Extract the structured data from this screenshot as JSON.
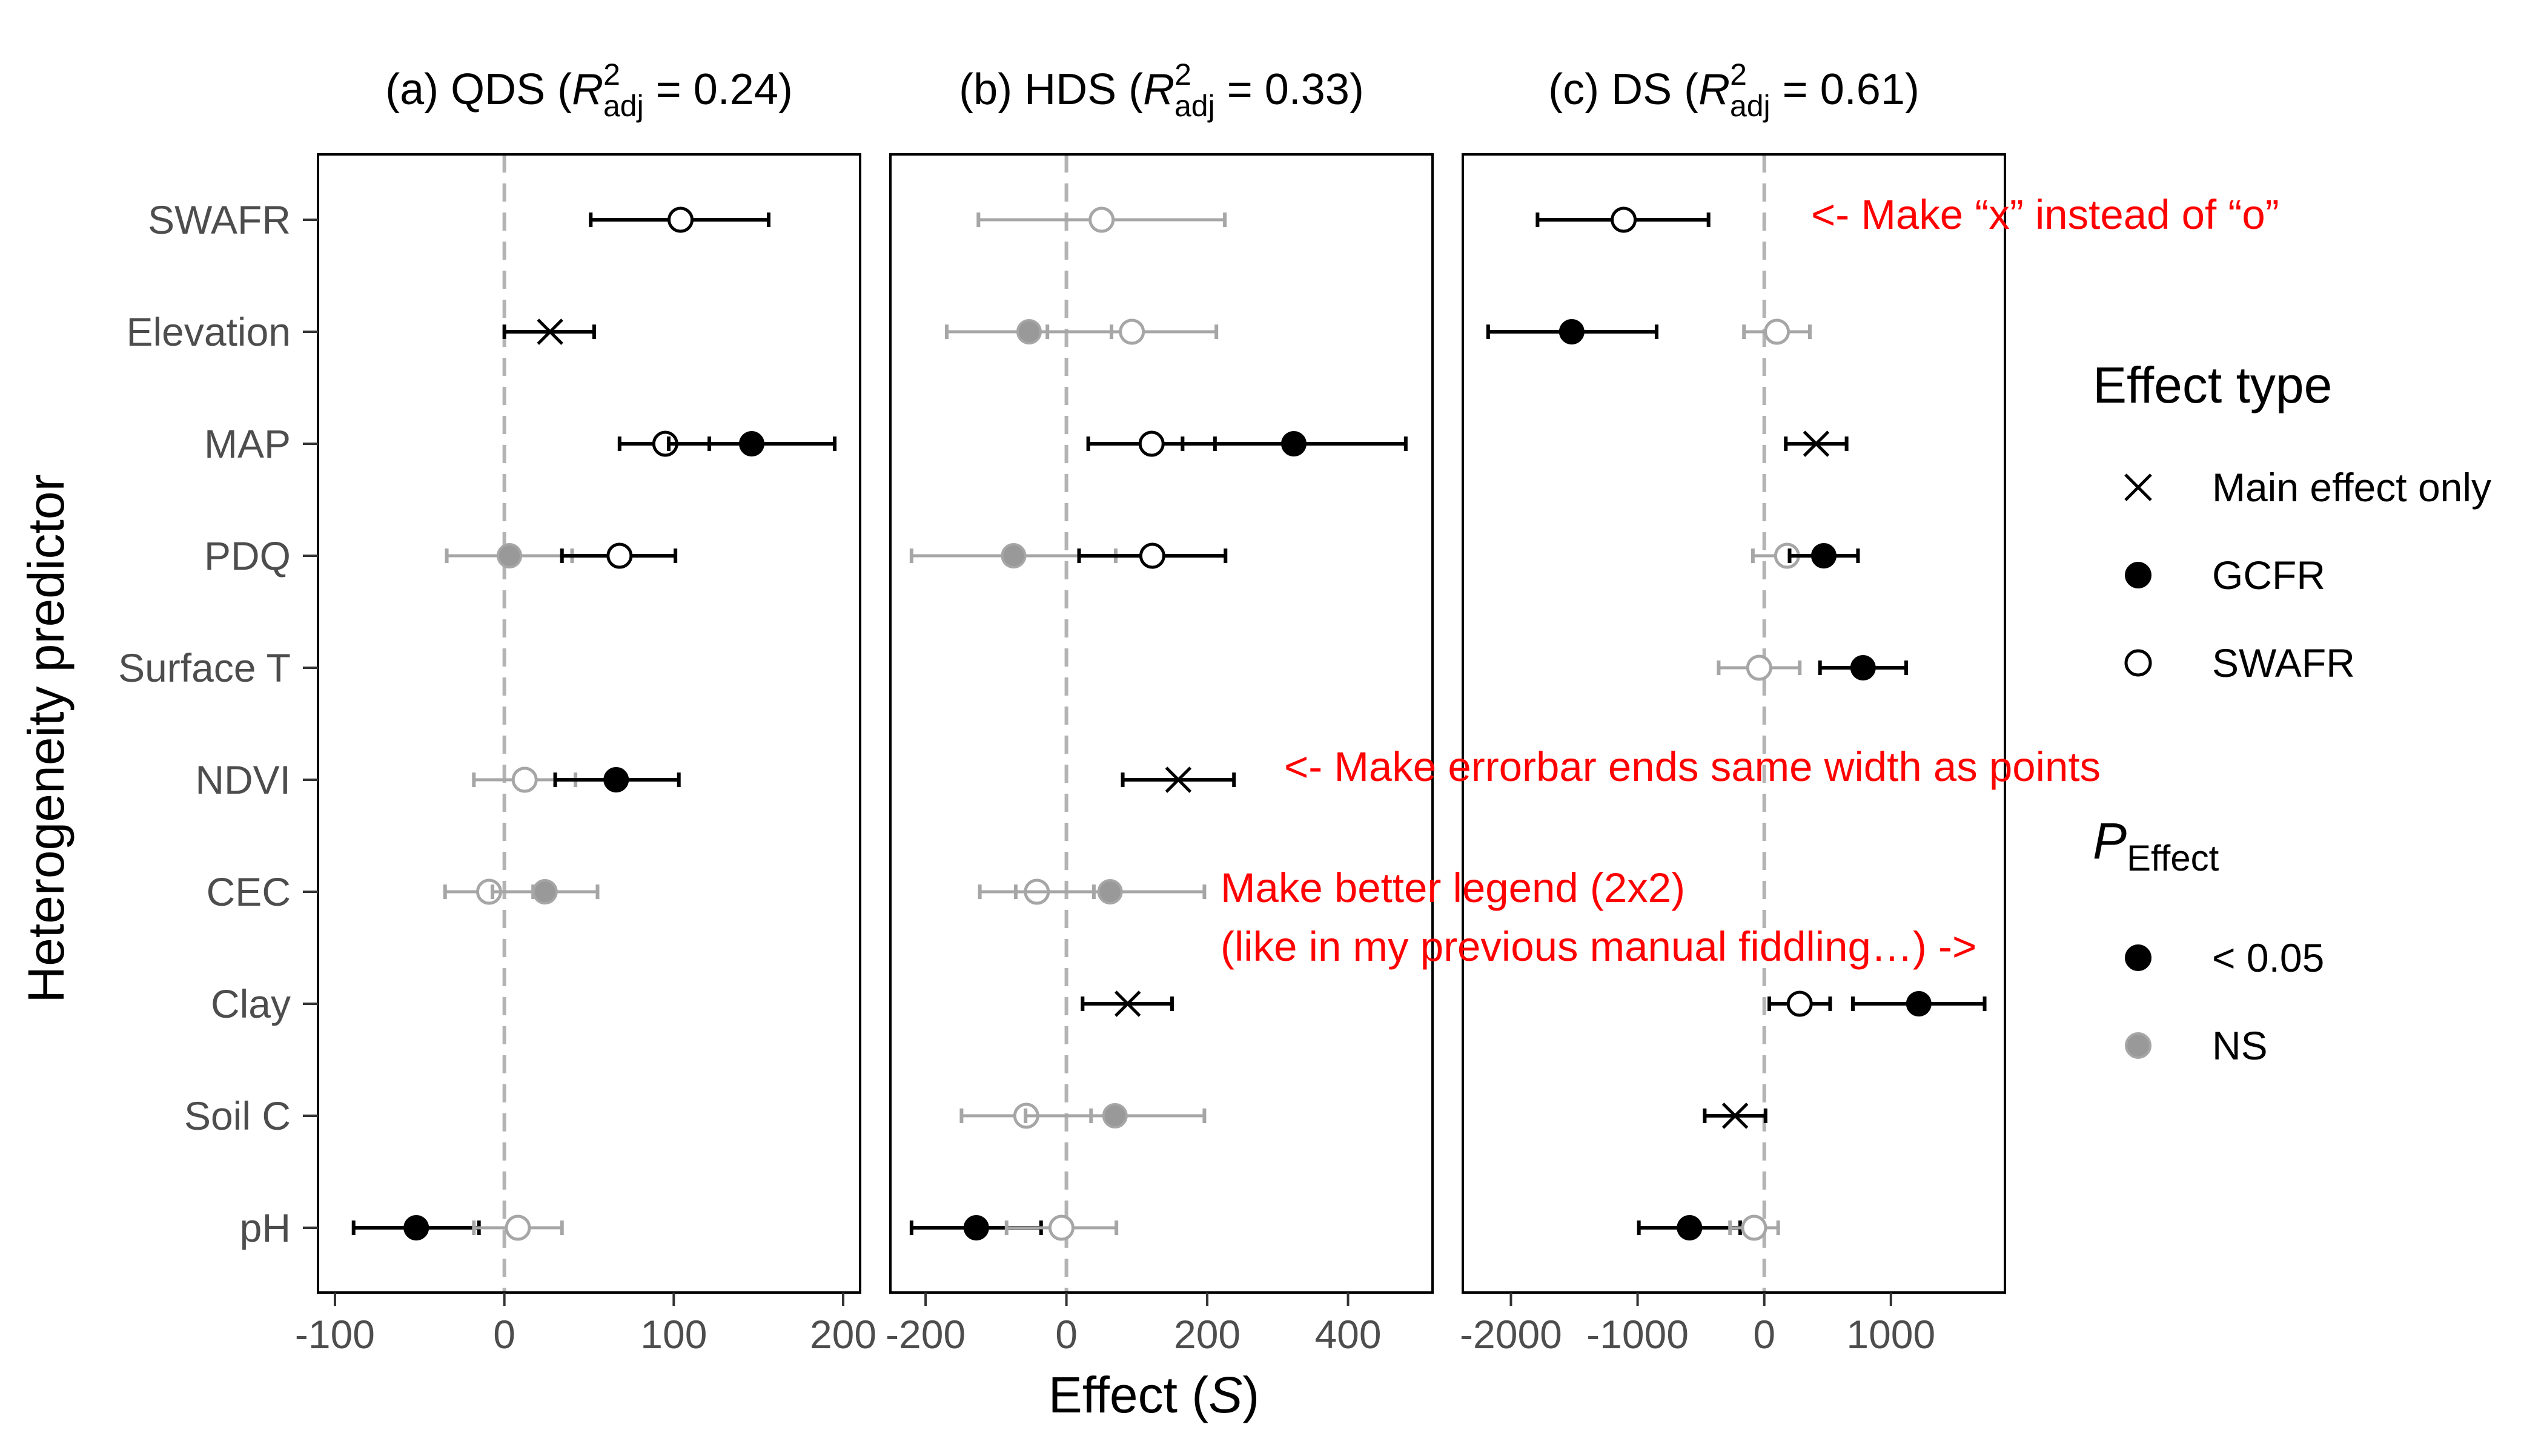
{
  "colors": {
    "sig": "#000000",
    "ns": "#a6a6a6",
    "ns_fill": "#999999",
    "zero_line": "#b3b3b3",
    "annotation": "#ff0000"
  },
  "axis": {
    "ylabel": "Heterogeneity predictor",
    "xlabel": "Effect",
    "xlabel_symbol": "S",
    "predictors": [
      "SWAFR",
      "Elevation",
      "MAP",
      "PDQ",
      "Surface T",
      "NDVI",
      "CEC",
      "Clay",
      "Soil C",
      "pH"
    ]
  },
  "legend": {
    "effect_type_title": "Effect type",
    "effect_type_items": [
      {
        "symbol": "cross",
        "label": "Main effect only"
      },
      {
        "symbol": "filled",
        "label": "GCFR"
      },
      {
        "symbol": "open",
        "label": "SWAFR"
      }
    ],
    "p_title": "P",
    "p_title_sub": "Effect",
    "p_items": [
      {
        "status": "sig",
        "label": "< 0.05"
      },
      {
        "status": "ns",
        "label": "NS"
      }
    ]
  },
  "annotations": [
    "<- Make “x” instead of “o”",
    "<- Make errorbar ends same width as points",
    "Make better legend (2x2)",
    "(like in my previous manual fiddling…) ->"
  ],
  "chart_data": [
    {
      "type": "scatter",
      "panel": "(a)",
      "title_prefix": "(a)  QDS (",
      "title_r2": "R",
      "title_r2_sup": "2",
      "title_r2_sub": "adj",
      "title_value": " = 0.24)",
      "xlim": [
        -110,
        210
      ],
      "xticks": [
        -100,
        0,
        100,
        200
      ],
      "xtick_labels": [
        "-100",
        "0",
        "100",
        "200"
      ],
      "points": [
        {
          "predictor": "SWAFR",
          "type": "SWAFR",
          "sig": true,
          "est": 104,
          "lo": 51,
          "hi": 156
        },
        {
          "predictor": "Elevation",
          "type": "Main",
          "sig": true,
          "est": 27,
          "lo": 0,
          "hi": 53
        },
        {
          "predictor": "MAP",
          "type": "SWAFR",
          "sig": true,
          "est": 95,
          "lo": 68,
          "hi": 121
        },
        {
          "predictor": "MAP",
          "type": "GCFR",
          "sig": true,
          "est": 146,
          "lo": 97,
          "hi": 195
        },
        {
          "predictor": "PDQ",
          "type": "GCFR",
          "sig": false,
          "est": 3,
          "lo": -34,
          "hi": 40
        },
        {
          "predictor": "PDQ",
          "type": "SWAFR",
          "sig": true,
          "est": 68,
          "lo": 34,
          "hi": 101
        },
        {
          "predictor": "NDVI",
          "type": "SWAFR",
          "sig": false,
          "est": 12,
          "lo": -18,
          "hi": 42
        },
        {
          "predictor": "NDVI",
          "type": "GCFR",
          "sig": true,
          "est": 66,
          "lo": 30,
          "hi": 103
        },
        {
          "predictor": "CEC",
          "type": "SWAFR",
          "sig": false,
          "est": -9,
          "lo": -35,
          "hi": 17
        },
        {
          "predictor": "CEC",
          "type": "GCFR",
          "sig": false,
          "est": 24,
          "lo": -7,
          "hi": 55
        },
        {
          "predictor": "pH",
          "type": "GCFR",
          "sig": true,
          "est": -52,
          "lo": -89,
          "hi": -15
        },
        {
          "predictor": "pH",
          "type": "SWAFR",
          "sig": false,
          "est": 8,
          "lo": -18,
          "hi": 34
        }
      ]
    },
    {
      "type": "scatter",
      "panel": "(b)",
      "title_prefix": "(b)  HDS (",
      "title_r2": "R",
      "title_r2_sup": "2",
      "title_r2_sub": "adj",
      "title_value": " = 0.33)",
      "xlim": [
        -250,
        520
      ],
      "xticks": [
        -200,
        0,
        200,
        400
      ],
      "xtick_labels": [
        "-200",
        "0",
        "200",
        "400"
      ],
      "points": [
        {
          "predictor": "SWAFR",
          "type": "SWAFR",
          "sig": false,
          "est": 50,
          "lo": -125,
          "hi": 225
        },
        {
          "predictor": "Elevation",
          "type": "GCFR",
          "sig": false,
          "est": -53,
          "lo": -170,
          "hi": 64
        },
        {
          "predictor": "Elevation",
          "type": "SWAFR",
          "sig": false,
          "est": 93,
          "lo": -27,
          "hi": 213
        },
        {
          "predictor": "MAP",
          "type": "SWAFR",
          "sig": true,
          "est": 121,
          "lo": 31,
          "hi": 211
        },
        {
          "predictor": "MAP",
          "type": "GCFR",
          "sig": true,
          "est": 323,
          "lo": 165,
          "hi": 482
        },
        {
          "predictor": "PDQ",
          "type": "GCFR",
          "sig": false,
          "est": -75,
          "lo": -220,
          "hi": 70
        },
        {
          "predictor": "PDQ",
          "type": "SWAFR",
          "sig": true,
          "est": 122,
          "lo": 18,
          "hi": 226
        },
        {
          "predictor": "NDVI",
          "type": "Main",
          "sig": true,
          "est": 159,
          "lo": 80,
          "hi": 238
        },
        {
          "predictor": "CEC",
          "type": "SWAFR",
          "sig": false,
          "est": -42,
          "lo": -123,
          "hi": 39
        },
        {
          "predictor": "CEC",
          "type": "GCFR",
          "sig": false,
          "est": 62,
          "lo": -72,
          "hi": 196
        },
        {
          "predictor": "Clay",
          "type": "Main",
          "sig": true,
          "est": 87,
          "lo": 23,
          "hi": 150
        },
        {
          "predictor": "Soil C",
          "type": "SWAFR",
          "sig": false,
          "est": -57,
          "lo": -149,
          "hi": 35
        },
        {
          "predictor": "Soil C",
          "type": "GCFR",
          "sig": false,
          "est": 69,
          "lo": -58,
          "hi": 196
        },
        {
          "predictor": "pH",
          "type": "GCFR",
          "sig": true,
          "est": -128,
          "lo": -220,
          "hi": -36
        },
        {
          "predictor": "pH",
          "type": "SWAFR",
          "sig": false,
          "est": -7,
          "lo": -85,
          "hi": 71
        }
      ]
    },
    {
      "type": "scatter",
      "panel": "(c)",
      "title_prefix": "(c)  DS (",
      "title_r2": "R",
      "title_r2_sup": "2",
      "title_r2_sub": "adj",
      "title_value": " = 0.61)",
      "xlim": [
        -2380,
        1900
      ],
      "xticks": [
        -2000,
        -1000,
        0,
        1000
      ],
      "xtick_labels": [
        "-2000",
        "-1000",
        "0",
        "1000"
      ],
      "points": [
        {
          "predictor": "SWAFR",
          "type": "SWAFR",
          "sig": true,
          "est": -1110,
          "lo": -1790,
          "hi": -440
        },
        {
          "predictor": "Elevation",
          "type": "GCFR",
          "sig": true,
          "est": -1520,
          "lo": -2180,
          "hi": -850
        },
        {
          "predictor": "Elevation",
          "type": "SWAFR",
          "sig": false,
          "est": 100,
          "lo": -160,
          "hi": 360
        },
        {
          "predictor": "MAP",
          "type": "Main",
          "sig": true,
          "est": 410,
          "lo": 170,
          "hi": 650
        },
        {
          "predictor": "PDQ",
          "type": "SWAFR",
          "sig": false,
          "est": 180,
          "lo": -90,
          "hi": 450
        },
        {
          "predictor": "PDQ",
          "type": "GCFR",
          "sig": true,
          "est": 470,
          "lo": 200,
          "hi": 740
        },
        {
          "predictor": "Surface T",
          "type": "SWAFR",
          "sig": false,
          "est": -40,
          "lo": -360,
          "hi": 280
        },
        {
          "predictor": "Surface T",
          "type": "GCFR",
          "sig": true,
          "est": 780,
          "lo": 440,
          "hi": 1120
        },
        {
          "predictor": "Clay",
          "type": "SWAFR",
          "sig": true,
          "est": 280,
          "lo": 40,
          "hi": 520
        },
        {
          "predictor": "Clay",
          "type": "GCFR",
          "sig": true,
          "est": 1220,
          "lo": 700,
          "hi": 1740
        },
        {
          "predictor": "Soil C",
          "type": "Main",
          "sig": true,
          "est": -230,
          "lo": -470,
          "hi": 10
        },
        {
          "predictor": "pH",
          "type": "GCFR",
          "sig": true,
          "est": -590,
          "lo": -990,
          "hi": -190
        },
        {
          "predictor": "pH",
          "type": "SWAFR",
          "sig": false,
          "est": -80,
          "lo": -270,
          "hi": 110
        }
      ]
    }
  ]
}
